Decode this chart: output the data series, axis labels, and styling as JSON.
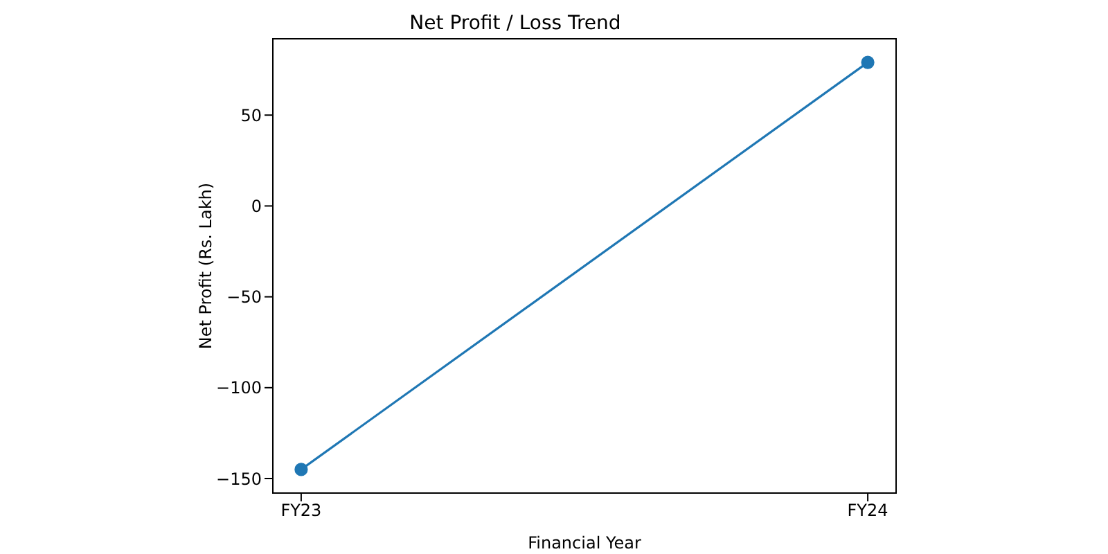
{
  "chart_data": {
    "type": "line",
    "title": "Net Profit / Loss Trend",
    "xlabel": "Financial Year",
    "ylabel": "Net Profit (Rs. Lakh)",
    "categories": [
      "FY23",
      "FY24"
    ],
    "series": [
      {
        "color": "#1f77b4",
        "values": [
          -145,
          79
        ]
      }
    ],
    "ylim": [
      -158,
      92
    ],
    "yticks": [
      -150,
      -100,
      -50,
      0,
      50
    ],
    "marker": "circle",
    "line_style": "solid"
  }
}
